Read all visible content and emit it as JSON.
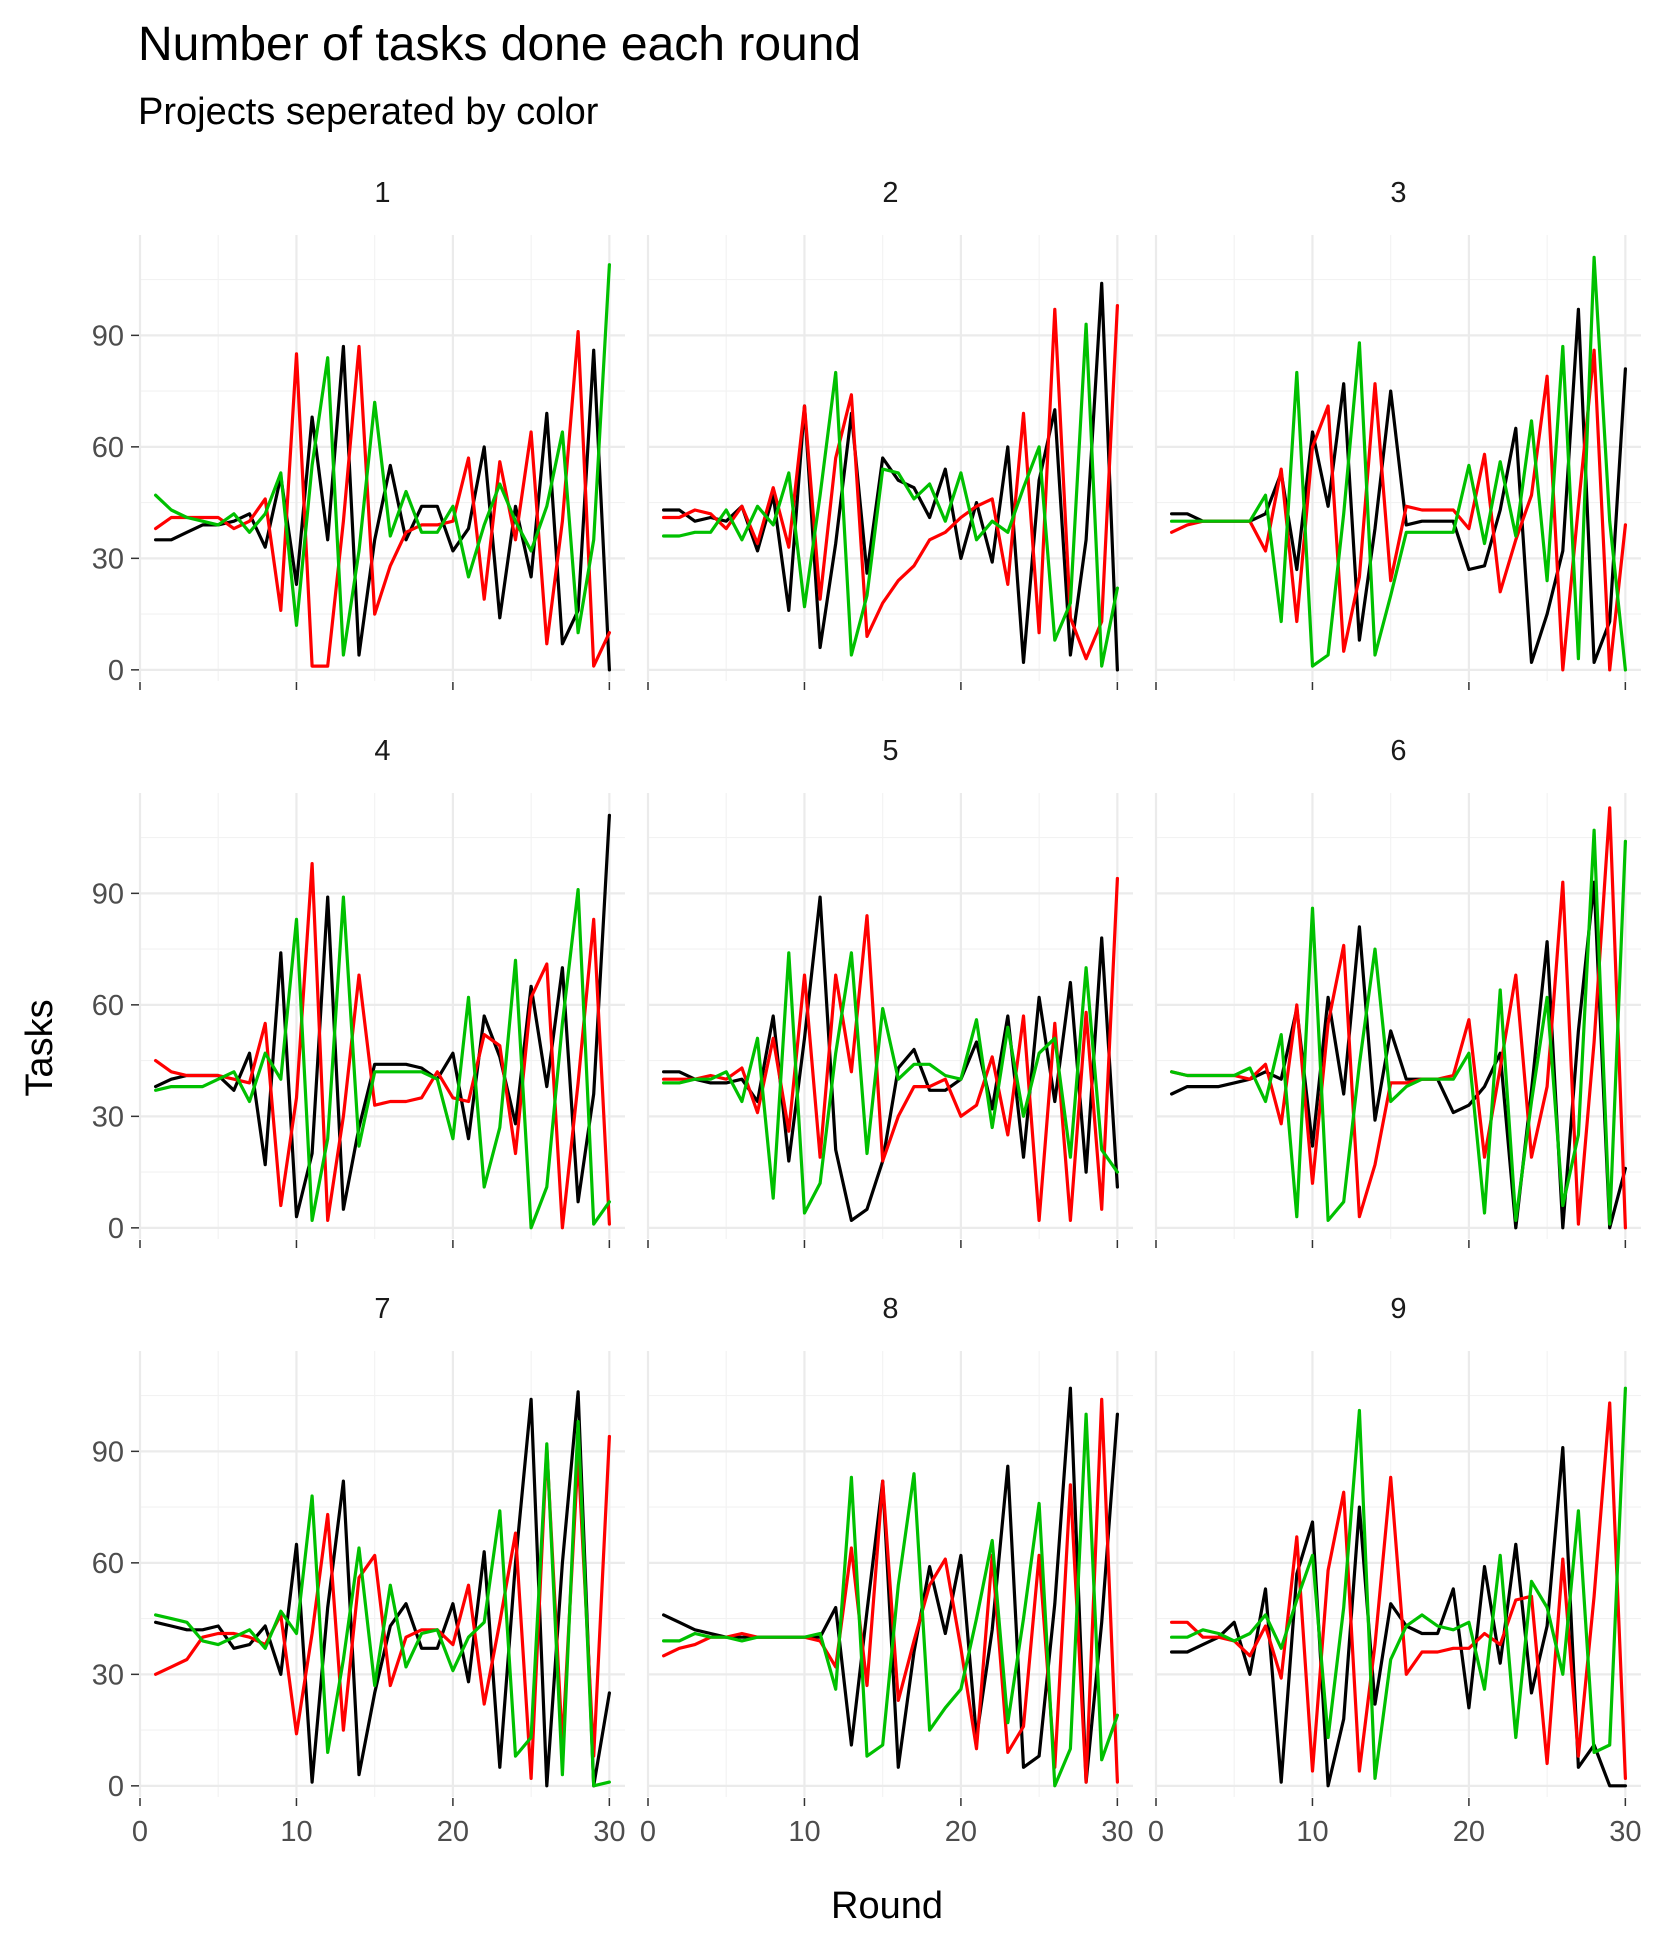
{
  "chart_data": {
    "type": "line",
    "title": "Number of tasks done each round",
    "subtitle": "Projects seperated by color",
    "xlabel": "Round",
    "ylabel": "Tasks",
    "xlim": [
      0,
      31
    ],
    "ylim": [
      -3,
      117
    ],
    "x_ticks": [
      0,
      10,
      20,
      30
    ],
    "y_ticks": [
      0,
      30,
      60,
      90
    ],
    "grid": true,
    "legend": "none",
    "x": [
      1,
      2,
      3,
      4,
      5,
      6,
      7,
      8,
      9,
      10,
      11,
      12,
      13,
      14,
      15,
      16,
      17,
      18,
      19,
      20,
      21,
      22,
      23,
      24,
      25,
      26,
      27,
      28,
      29,
      30
    ],
    "series_colors": [
      "#000000",
      "#ff0000",
      "#00c000"
    ],
    "panels": [
      {
        "label": "1",
        "series": [
          {
            "values": [
              35,
              35,
              37,
              39,
              39,
              40,
              42,
              33,
              52,
              23,
              68,
              35,
              87,
              4,
              35,
              55,
              35,
              44,
              44,
              32,
              38,
              60,
              14,
              44,
              25,
              69,
              7,
              16,
              86,
              0
            ]
          },
          {
            "values": [
              38,
              41,
              41,
              41,
              41,
              38,
              40,
              46,
              16,
              85,
              1,
              1,
              40,
              87,
              15,
              28,
              37,
              39,
              39,
              40,
              57,
              19,
              56,
              35,
              64,
              7,
              40,
              91,
              1,
              10
            ]
          },
          {
            "values": [
              47,
              43,
              41,
              40,
              39,
              42,
              37,
              42,
              53,
              12,
              55,
              84,
              4,
              32,
              72,
              36,
              48,
              37,
              37,
              44,
              25,
              39,
              50,
              40,
              32,
              44,
              64,
              10,
              35,
              109
            ]
          }
        ]
      },
      {
        "label": "2",
        "series": [
          {
            "values": [
              43,
              43,
              40,
              41,
              40,
              44,
              32,
              47,
              16,
              71,
              6,
              34,
              69,
              26,
              57,
              51,
              49,
              41,
              54,
              30,
              45,
              29,
              60,
              2,
              51,
              70,
              4,
              35,
              104,
              0
            ]
          },
          {
            "values": [
              41,
              41,
              43,
              42,
              38,
              44,
              34,
              49,
              33,
              71,
              19,
              57,
              74,
              9,
              18,
              24,
              28,
              35,
              37,
              41,
              44,
              46,
              23,
              69,
              10,
              97,
              14,
              3,
              13,
              98
            ]
          },
          {
            "values": [
              36,
              36,
              37,
              37,
              43,
              35,
              44,
              39,
              53,
              17,
              47,
              80,
              4,
              20,
              54,
              53,
              46,
              50,
              40,
              53,
              35,
              40,
              37,
              49,
              60,
              8,
              18,
              93,
              1,
              22
            ]
          }
        ]
      },
      {
        "label": "3",
        "series": [
          {
            "values": [
              42,
              42,
              40,
              40,
              40,
              40,
              42,
              53,
              27,
              64,
              44,
              77,
              8,
              38,
              75,
              39,
              40,
              40,
              40,
              27,
              28,
              43,
              65,
              2,
              15,
              32,
              97,
              2,
              13,
              81
            ]
          },
          {
            "values": [
              37,
              39,
              40,
              40,
              40,
              40,
              32,
              54,
              13,
              60,
              71,
              5,
              25,
              77,
              24,
              44,
              43,
              43,
              43,
              38,
              58,
              21,
              35,
              47,
              79,
              0,
              44,
              86,
              0,
              39
            ]
          },
          {
            "values": [
              40,
              40,
              40,
              40,
              40,
              40,
              47,
              13,
              80,
              1,
              4,
              42,
              88,
              4,
              20,
              37,
              37,
              37,
              37,
              55,
              34,
              56,
              36,
              67,
              24,
              87,
              3,
              111,
              40,
              0
            ]
          }
        ]
      },
      {
        "label": "4",
        "series": [
          {
            "values": [
              38,
              40,
              41,
              41,
              41,
              37,
              47,
              17,
              74,
              3,
              20,
              89,
              5,
              27,
              44,
              44,
              44,
              43,
              40,
              47,
              24,
              57,
              46,
              28,
              65,
              38,
              70,
              7,
              36,
              111
            ]
          },
          {
            "values": [
              45,
              42,
              41,
              41,
              41,
              40,
              39,
              55,
              6,
              35,
              98,
              2,
              30,
              68,
              33,
              34,
              34,
              35,
              42,
              35,
              34,
              52,
              49,
              20,
              62,
              71,
              0,
              39,
              83,
              1
            ]
          },
          {
            "values": [
              37,
              38,
              38,
              38,
              40,
              42,
              34,
              47,
              40,
              83,
              2,
              24,
              89,
              22,
              42,
              42,
              42,
              42,
              40,
              24,
              62,
              11,
              27,
              72,
              0,
              11,
              55,
              91,
              1,
              7
            ]
          }
        ]
      },
      {
        "label": "5",
        "series": [
          {
            "values": [
              42,
              42,
              40,
              39,
              39,
              40,
              34,
              57,
              18,
              51,
              89,
              21,
              2,
              5,
              18,
              43,
              48,
              37,
              37,
              40,
              50,
              32,
              57,
              19,
              62,
              34,
              66,
              15,
              78,
              11
            ]
          },
          {
            "values": [
              40,
              40,
              40,
              41,
              40,
              43,
              31,
              51,
              26,
              68,
              19,
              68,
              42,
              84,
              18,
              30,
              38,
              38,
              40,
              30,
              33,
              46,
              25,
              57,
              2,
              55,
              2,
              58,
              5,
              94
            ]
          },
          {
            "values": [
              39,
              39,
              40,
              40,
              42,
              34,
              51,
              8,
              74,
              4,
              12,
              47,
              74,
              20,
              59,
              40,
              44,
              44,
              41,
              40,
              56,
              27,
              54,
              30,
              47,
              51,
              19,
              70,
              21,
              15
            ]
          }
        ]
      },
      {
        "label": "6",
        "series": [
          {
            "values": [
              36,
              38,
              38,
              38,
              39,
              40,
              42,
              40,
              59,
              22,
              62,
              36,
              81,
              29,
              53,
              40,
              40,
              40,
              31,
              33,
              38,
              47,
              0,
              37,
              77,
              0,
              53,
              93,
              0,
              16
            ]
          },
          {
            "values": [
              42,
              41,
              41,
              41,
              41,
              40,
              44,
              28,
              60,
              12,
              55,
              76,
              3,
              17,
              39,
              39,
              40,
              40,
              41,
              56,
              19,
              43,
              68,
              19,
              38,
              93,
              1,
              50,
              113,
              0
            ]
          },
          {
            "values": [
              42,
              41,
              41,
              41,
              41,
              43,
              34,
              52,
              3,
              86,
              2,
              7,
              44,
              75,
              34,
              38,
              40,
              40,
              40,
              47,
              4,
              64,
              2,
              34,
              62,
              6,
              25,
              107,
              1,
              104
            ]
          }
        ]
      },
      {
        "label": "7",
        "series": [
          {
            "values": [
              44,
              43,
              42,
              42,
              43,
              37,
              38,
              43,
              30,
              65,
              1,
              48,
              82,
              3,
              25,
              43,
              49,
              37,
              37,
              49,
              28,
              63,
              5,
              60,
              104,
              0,
              60,
              106,
              0,
              25
            ]
          },
          {
            "values": [
              30,
              32,
              34,
              40,
              41,
              41,
              40,
              38,
              46,
              14,
              41,
              73,
              15,
              56,
              62,
              27,
              40,
              42,
              42,
              38,
              54,
              22,
              44,
              68,
              2,
              91,
              11,
              89,
              8,
              94
            ]
          },
          {
            "values": [
              46,
              45,
              44,
              39,
              38,
              40,
              42,
              37,
              47,
              41,
              78,
              9,
              34,
              64,
              27,
              54,
              32,
              41,
              42,
              31,
              40,
              44,
              74,
              8,
              13,
              92,
              3,
              98,
              0,
              1
            ]
          }
        ]
      },
      {
        "label": "8",
        "series": [
          {
            "values": [
              46,
              44,
              42,
              41,
              40,
              40,
              40,
              40,
              40,
              40,
              40,
              48,
              11,
              47,
              82,
              5,
              36,
              59,
              41,
              62,
              13,
              42,
              86,
              5,
              8,
              49,
              107,
              1,
              44,
              100
            ]
          },
          {
            "values": [
              35,
              37,
              38,
              40,
              40,
              41,
              40,
              40,
              40,
              40,
              39,
              32,
              64,
              27,
              82,
              23,
              39,
              54,
              61,
              37,
              10,
              62,
              9,
              16,
              62,
              5,
              81,
              1,
              104,
              1
            ]
          },
          {
            "values": [
              39,
              39,
              41,
              40,
              40,
              39,
              40,
              40,
              40,
              40,
              41,
              26,
              83,
              8,
              11,
              54,
              84,
              15,
              21,
              26,
              45,
              66,
              17,
              45,
              76,
              0,
              10,
              100,
              7,
              19
            ]
          }
        ]
      },
      {
        "label": "9",
        "series": [
          {
            "values": [
              36,
              36,
              38,
              40,
              44,
              30,
              53,
              1,
              57,
              71,
              0,
              18,
              75,
              22,
              49,
              43,
              41,
              41,
              53,
              21,
              59,
              33,
              65,
              25,
              43,
              91,
              5,
              11,
              0,
              0
            ]
          },
          {
            "values": [
              44,
              44,
              40,
              40,
              39,
              35,
              43,
              29,
              67,
              4,
              58,
              79,
              4,
              38,
              83,
              30,
              36,
              36,
              37,
              37,
              41,
              38,
              50,
              51,
              6,
              61,
              8,
              51,
              103,
              2
            ]
          },
          {
            "values": [
              40,
              40,
              42,
              41,
              39,
              41,
              46,
              37,
              50,
              62,
              13,
              48,
              101,
              2,
              34,
              43,
              46,
              43,
              42,
              44,
              26,
              62,
              13,
              55,
              48,
              30,
              74,
              9,
              11,
              107
            ]
          }
        ]
      }
    ]
  }
}
